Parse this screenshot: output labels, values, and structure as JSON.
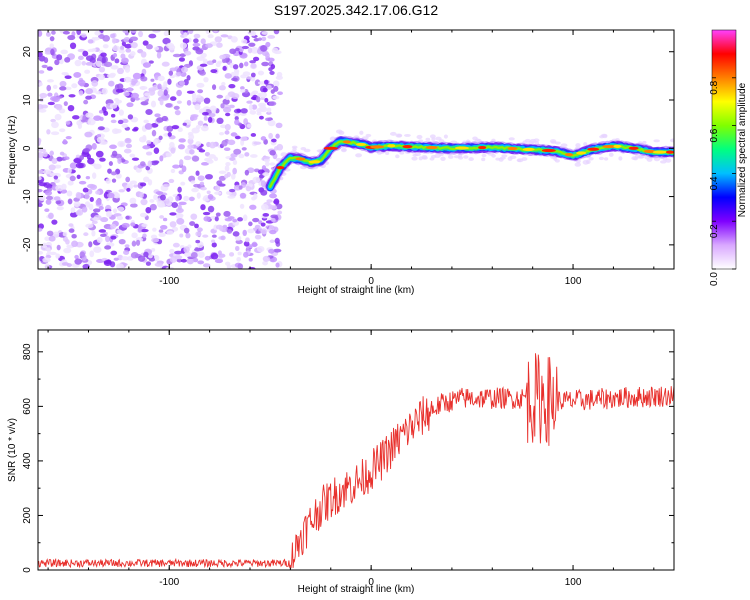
{
  "title": "S197.2025.342.17.06.G12",
  "chart_data": [
    {
      "type": "heatmap",
      "xlabel": "Height of straight line (km)",
      "ylabel": "Frequency (Hz)",
      "xlim": [
        -165,
        150
      ],
      "ylim": [
        -25,
        24.5
      ],
      "xticks": [
        -100,
        0,
        100
      ],
      "yticks": [
        -20,
        -10,
        0,
        10,
        20
      ],
      "noise_region_x": [
        -165,
        -48
      ],
      "ridge": {
        "x": [
          -50,
          -45,
          -40,
          -35,
          -30,
          -25,
          -20,
          -15,
          -10,
          -5,
          0,
          10,
          20,
          40,
          60,
          80,
          90,
          100,
          110,
          120,
          130,
          140,
          150
        ],
        "freq": [
          -8,
          -4,
          -2,
          -2.2,
          -3,
          -2.5,
          0,
          1.5,
          1.2,
          0.8,
          0.2,
          0.5,
          0.3,
          0,
          0.2,
          -0.3,
          -0.5,
          -1.5,
          -0.2,
          0.5,
          0,
          -0.8,
          -0.8
        ]
      },
      "colorbar": {
        "label": "Normalized spectral amplitude",
        "ticks": [
          "0.0",
          "0.2",
          "0.4",
          "0.6",
          "0.8"
        ],
        "colors": [
          "#ffffff",
          "#d9a8ff",
          "#7f00ff",
          "#0000ff",
          "#00bfff",
          "#00ff80",
          "#80ff00",
          "#ffff00",
          "#ff8000",
          "#ff0000",
          "#ff40ff"
        ]
      }
    },
    {
      "type": "line",
      "xlabel": "Height of straight line (km)",
      "ylabel": "SNR (10 * v/v)",
      "xlim": [
        -165,
        150
      ],
      "ylim": [
        0,
        880
      ],
      "xticks": [
        -100,
        0,
        100
      ],
      "yticks": [
        0,
        200,
        400,
        600,
        800
      ],
      "line_color": "#e8302c",
      "trend": {
        "x": [
          -165,
          -40,
          -35,
          -25,
          -15,
          -5,
          5,
          15,
          25,
          35,
          45,
          60,
          75,
          80,
          85,
          90,
          100,
          120,
          150
        ],
        "y": [
          25,
          25,
          120,
          230,
          290,
          330,
          400,
          490,
          560,
          610,
          630,
          630,
          630,
          630,
          630,
          620,
          620,
          630,
          640
        ]
      }
    }
  ]
}
